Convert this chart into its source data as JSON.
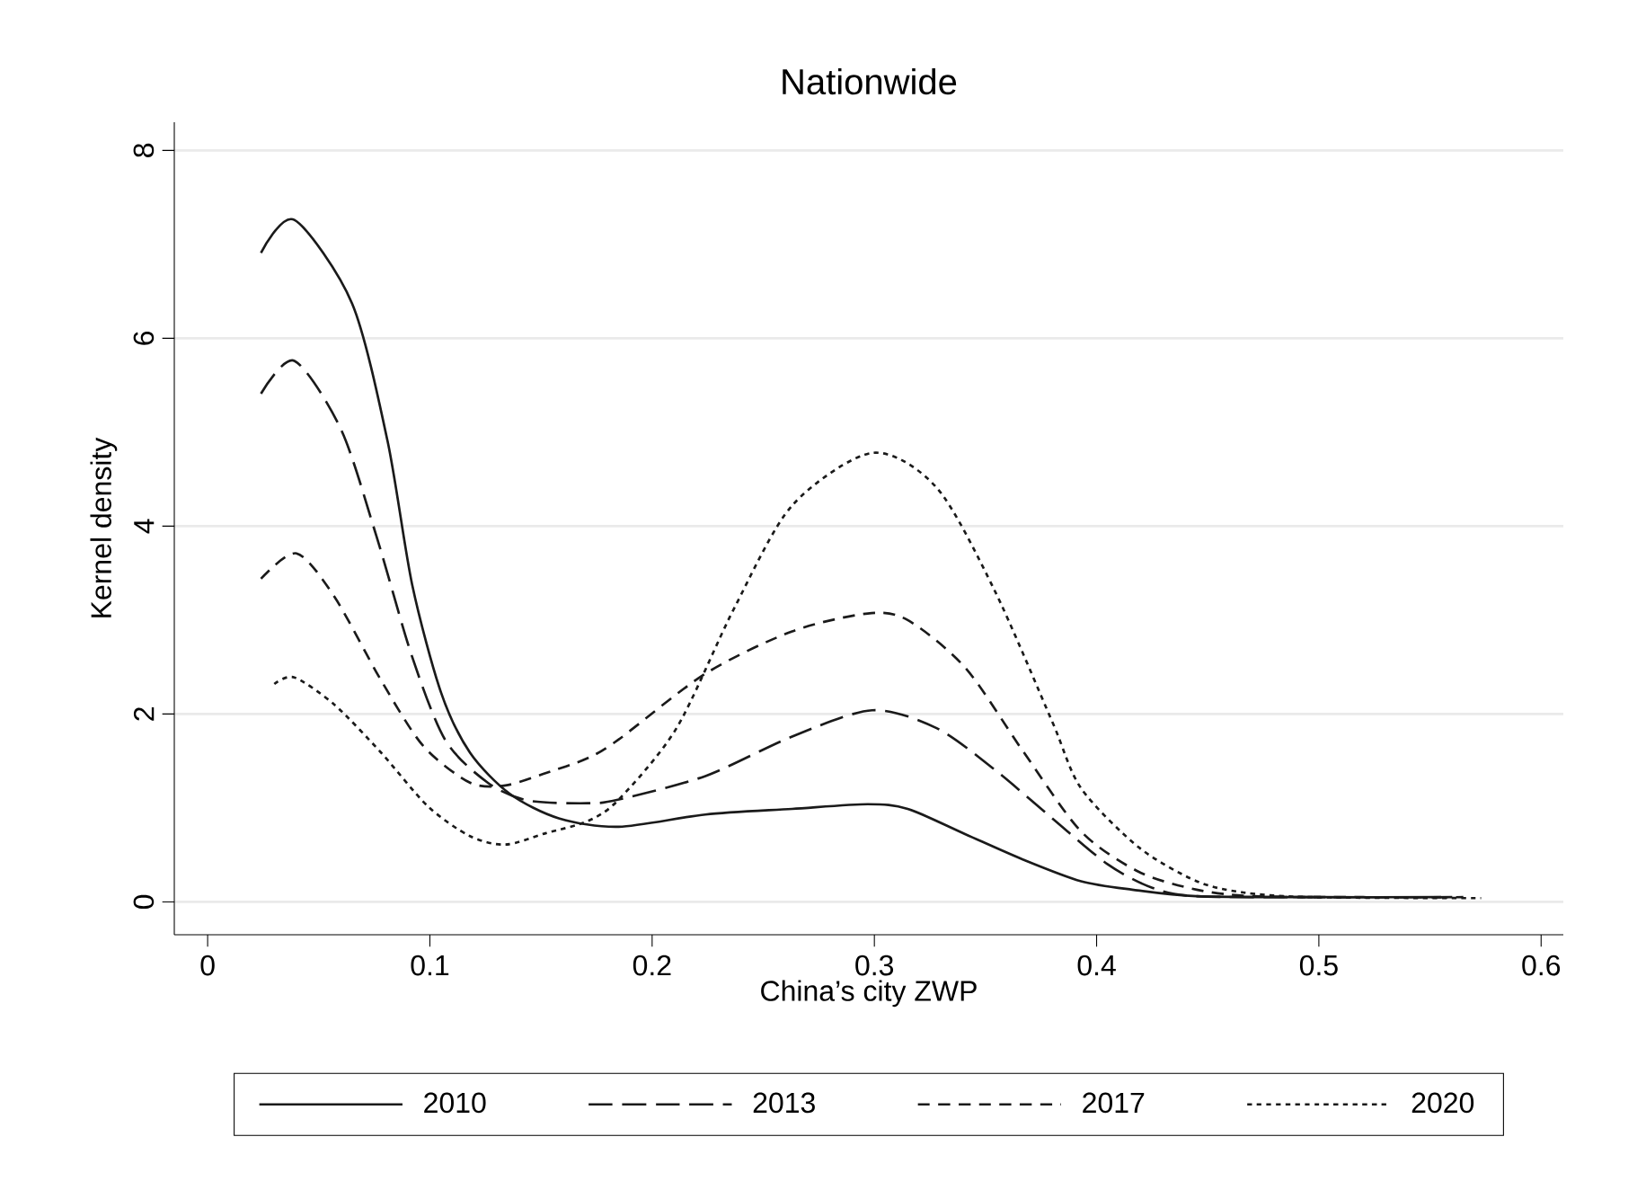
{
  "chart_data": {
    "type": "line",
    "title": "Nationwide",
    "xlabel": "China’s city ZWP",
    "ylabel": "Kernel density",
    "xlim": [
      -0.015,
      0.61
    ],
    "ylim": [
      -0.35,
      8.3
    ],
    "xticks": [
      0,
      0.1,
      0.2,
      0.3,
      0.4,
      0.5,
      0.6
    ],
    "yticks": [
      0,
      2,
      4,
      6,
      8
    ],
    "grid": "y",
    "legend": "bottom",
    "series": [
      {
        "name": "2010",
        "color": "#1a1a1a",
        "line_style": "solid",
        "x": [
          0.024,
          0.039,
          0.065,
          0.081,
          0.092,
          0.105,
          0.118,
          0.136,
          0.158,
          0.185,
          0.224,
          0.263,
          0.297,
          0.315,
          0.341,
          0.367,
          0.393,
          0.416,
          0.445,
          0.5,
          0.555
        ],
        "values": [
          6.91,
          7.26,
          6.37,
          4.9,
          3.38,
          2.23,
          1.59,
          1.15,
          0.89,
          0.8,
          0.93,
          0.99,
          1.04,
          0.99,
          0.72,
          0.45,
          0.22,
          0.13,
          0.06,
          0.05,
          0.05
        ]
      },
      {
        "name": "2013",
        "color": "#1a1a1a",
        "line_style": "dashed",
        "x": [
          0.024,
          0.039,
          0.06,
          0.076,
          0.092,
          0.107,
          0.126,
          0.144,
          0.171,
          0.185,
          0.224,
          0.263,
          0.299,
          0.328,
          0.354,
          0.38,
          0.405,
          0.425,
          0.445,
          0.5,
          0.56
        ],
        "values": [
          5.41,
          5.76,
          5.03,
          3.89,
          2.61,
          1.72,
          1.27,
          1.08,
          1.05,
          1.09,
          1.34,
          1.76,
          2.04,
          1.85,
          1.41,
          0.89,
          0.4,
          0.15,
          0.06,
          0.05,
          0.05
        ]
      },
      {
        "name": "2017",
        "color": "#1a1a1a",
        "line_style": "dashed",
        "x": [
          0.024,
          0.04,
          0.057,
          0.078,
          0.097,
          0.118,
          0.134,
          0.152,
          0.171,
          0.185,
          0.224,
          0.263,
          0.297,
          0.315,
          0.341,
          0.367,
          0.393,
          0.419,
          0.445,
          0.471,
          0.52,
          0.565
        ],
        "values": [
          3.44,
          3.71,
          3.25,
          2.36,
          1.66,
          1.27,
          1.24,
          1.37,
          1.53,
          1.73,
          2.43,
          2.88,
          3.07,
          3.0,
          2.49,
          1.6,
          0.75,
          0.32,
          0.13,
          0.06,
          0.05,
          0.05
        ]
      },
      {
        "name": "2020",
        "color": "#1a1a1a",
        "line_style": "dotted",
        "x": [
          0.03,
          0.039,
          0.057,
          0.078,
          0.099,
          0.118,
          0.134,
          0.152,
          0.171,
          0.185,
          0.211,
          0.237,
          0.263,
          0.299,
          0.328,
          0.354,
          0.38,
          0.393,
          0.419,
          0.445,
          0.466,
          0.497,
          0.573
        ],
        "values": [
          2.32,
          2.39,
          2.1,
          1.59,
          1.02,
          0.7,
          0.61,
          0.73,
          0.86,
          1.09,
          1.85,
          3.13,
          4.22,
          4.78,
          4.41,
          3.32,
          1.92,
          1.21,
          0.58,
          0.22,
          0.1,
          0.05,
          0.04
        ]
      }
    ]
  }
}
